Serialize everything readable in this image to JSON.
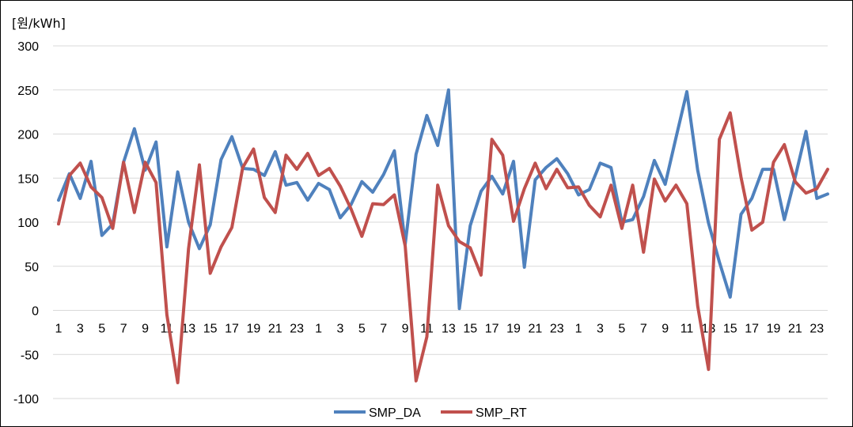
{
  "chart_data": {
    "type": "line",
    "title": "",
    "ylabel": "[원/kWh]",
    "xlabel": "",
    "ylim": [
      -100,
      300
    ],
    "yticks": [
      300,
      250,
      200,
      150,
      100,
      50,
      0,
      -50,
      -100
    ],
    "grid": "horizontal",
    "legend_position": "bottom",
    "categories": [
      "1",
      "2",
      "3",
      "4",
      "5",
      "6",
      "7",
      "8",
      "9",
      "10",
      "11",
      "12",
      "13",
      "14",
      "15",
      "16",
      "17",
      "18",
      "19",
      "20",
      "21",
      "22",
      "23",
      "24",
      "1",
      "2",
      "3",
      "4",
      "5",
      "6",
      "7",
      "8",
      "9",
      "10",
      "11",
      "12",
      "13",
      "14",
      "15",
      "16",
      "17",
      "18",
      "19",
      "20",
      "21",
      "22",
      "23",
      "24",
      "1",
      "2",
      "3",
      "4",
      "5",
      "6",
      "7",
      "8",
      "9",
      "10",
      "11",
      "12",
      "13",
      "14",
      "15",
      "16",
      "17",
      "18",
      "19",
      "20",
      "21",
      "22",
      "23",
      "24"
    ],
    "series": [
      {
        "name": "SMP_DA",
        "color": "#4F81BD",
        "values": [
          125,
          155,
          127,
          169,
          85,
          98,
          168,
          206,
          159,
          191,
          72,
          157,
          100,
          70,
          97,
          171,
          197,
          161,
          160,
          153,
          180,
          142,
          145,
          125,
          144,
          137,
          105,
          120,
          146,
          134,
          154,
          181,
          75,
          177,
          221,
          187,
          250,
          2,
          96,
          135,
          152,
          132,
          169,
          49,
          148,
          162,
          172,
          155,
          131,
          137,
          167,
          162,
          100,
          103,
          129,
          170,
          143,
          196,
          248,
          159,
          99,
          55,
          15,
          109,
          127,
          160,
          160,
          103,
          151,
          203,
          127,
          132
        ]
      },
      {
        "name": "SMP_RT",
        "color": "#C0504D",
        "values": [
          98,
          153,
          167,
          140,
          128,
          93,
          168,
          111,
          168,
          145,
          -5,
          -82,
          70,
          165,
          42,
          72,
          94,
          162,
          183,
          128,
          111,
          176,
          160,
          178,
          153,
          161,
          141,
          115,
          84,
          121,
          120,
          131,
          73,
          -80,
          -30,
          142,
          96,
          78,
          71,
          40,
          194,
          176,
          101,
          138,
          167,
          138,
          160,
          139,
          140,
          119,
          106,
          142,
          93,
          142,
          66,
          149,
          124,
          142,
          121,
          5,
          -67,
          194,
          224,
          151,
          91,
          100,
          168,
          188,
          146,
          133,
          138,
          160
        ]
      }
    ]
  }
}
